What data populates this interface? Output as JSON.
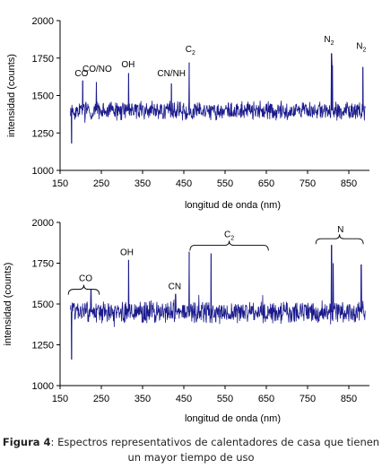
{
  "chart_data": [
    {
      "type": "line",
      "title": "",
      "xlabel": "longitud de onda (nm)",
      "ylabel": "intensidad (counts)",
      "xlim": [
        150,
        900
      ],
      "ylim": [
        1000,
        2000
      ],
      "xticks": [
        "150",
        "250",
        "350",
        "450",
        "550",
        "650",
        "750",
        "850"
      ],
      "yticks": [
        "1000",
        "1250",
        "1500",
        "1750",
        "2000"
      ],
      "series": [
        {
          "color": "#1a1a8c",
          "baseline": 1400,
          "noise_amplitude": 70,
          "x_range": [
            175,
            890
          ],
          "peaks": [
            {
              "x": 178,
              "y": 1180
            },
            {
              "x": 205,
              "y": 1600
            },
            {
              "x": 238,
              "y": 1590
            },
            {
              "x": 316,
              "y": 1650
            },
            {
              "x": 420,
              "y": 1580
            },
            {
              "x": 463,
              "y": 1720
            },
            {
              "x": 808,
              "y": 1780
            },
            {
              "x": 810,
              "y": 1700
            },
            {
              "x": 884,
              "y": 1690
            }
          ]
        }
      ],
      "annotations": [
        {
          "text": "CO",
          "x": 202,
          "y": 1630
        },
        {
          "text": "CO/NO",
          "x": 240,
          "y": 1660
        },
        {
          "text": "OH",
          "x": 315,
          "y": 1690
        },
        {
          "text": "CN/NH",
          "x": 420,
          "y": 1630
        },
        {
          "text": "C",
          "sub": "2",
          "x": 466,
          "y": 1790
        },
        {
          "text": "N",
          "sub": "2",
          "x": 802,
          "y": 1855
        },
        {
          "text": "N",
          "sub": "2",
          "x": 880,
          "y": 1810
        }
      ]
    },
    {
      "type": "line",
      "title": "",
      "xlabel": "longitud de onda (nm)",
      "ylabel": "intensidad (counts)",
      "xlim": [
        150,
        900
      ],
      "ylim": [
        1000,
        2000
      ],
      "xticks": [
        "150",
        "250",
        "350",
        "450",
        "550",
        "650",
        "750",
        "850"
      ],
      "yticks": [
        "1000",
        "1250",
        "1500",
        "1750",
        "2000"
      ],
      "series": [
        {
          "color": "#1a1a8c",
          "baseline": 1450,
          "noise_amplitude": 75,
          "x_range": [
            175,
            890
          ],
          "peaks": [
            {
              "x": 178,
              "y": 1160
            },
            {
              "x": 225,
              "y": 1590
            },
            {
              "x": 316,
              "y": 1770
            },
            {
              "x": 430,
              "y": 1560
            },
            {
              "x": 463,
              "y": 1820
            },
            {
              "x": 516,
              "y": 1810
            },
            {
              "x": 808,
              "y": 1860
            },
            {
              "x": 812,
              "y": 1750
            },
            {
              "x": 880,
              "y": 1740
            }
          ]
        }
      ],
      "annotations": [
        {
          "text": "CO",
          "x": 212,
          "y": 1640
        },
        {
          "text": "OH",
          "x": 312,
          "y": 1800
        },
        {
          "text": "CN",
          "x": 428,
          "y": 1590
        },
        {
          "text": "C",
          "sub": "2",
          "x": 560,
          "y": 1910
        },
        {
          "text": "N",
          "x": 830,
          "y": 1940
        }
      ],
      "brackets": [
        {
          "x1": 170,
          "x2": 245,
          "y": 1590
        },
        {
          "x1": 465,
          "x2": 655,
          "y": 1860
        },
        {
          "x1": 770,
          "x2": 885,
          "y": 1900
        }
      ]
    }
  ],
  "caption": {
    "label": "Figura 4",
    "text": ": Espectros representativos de calentadores de casa que tienen un mayor tiempo de uso"
  }
}
